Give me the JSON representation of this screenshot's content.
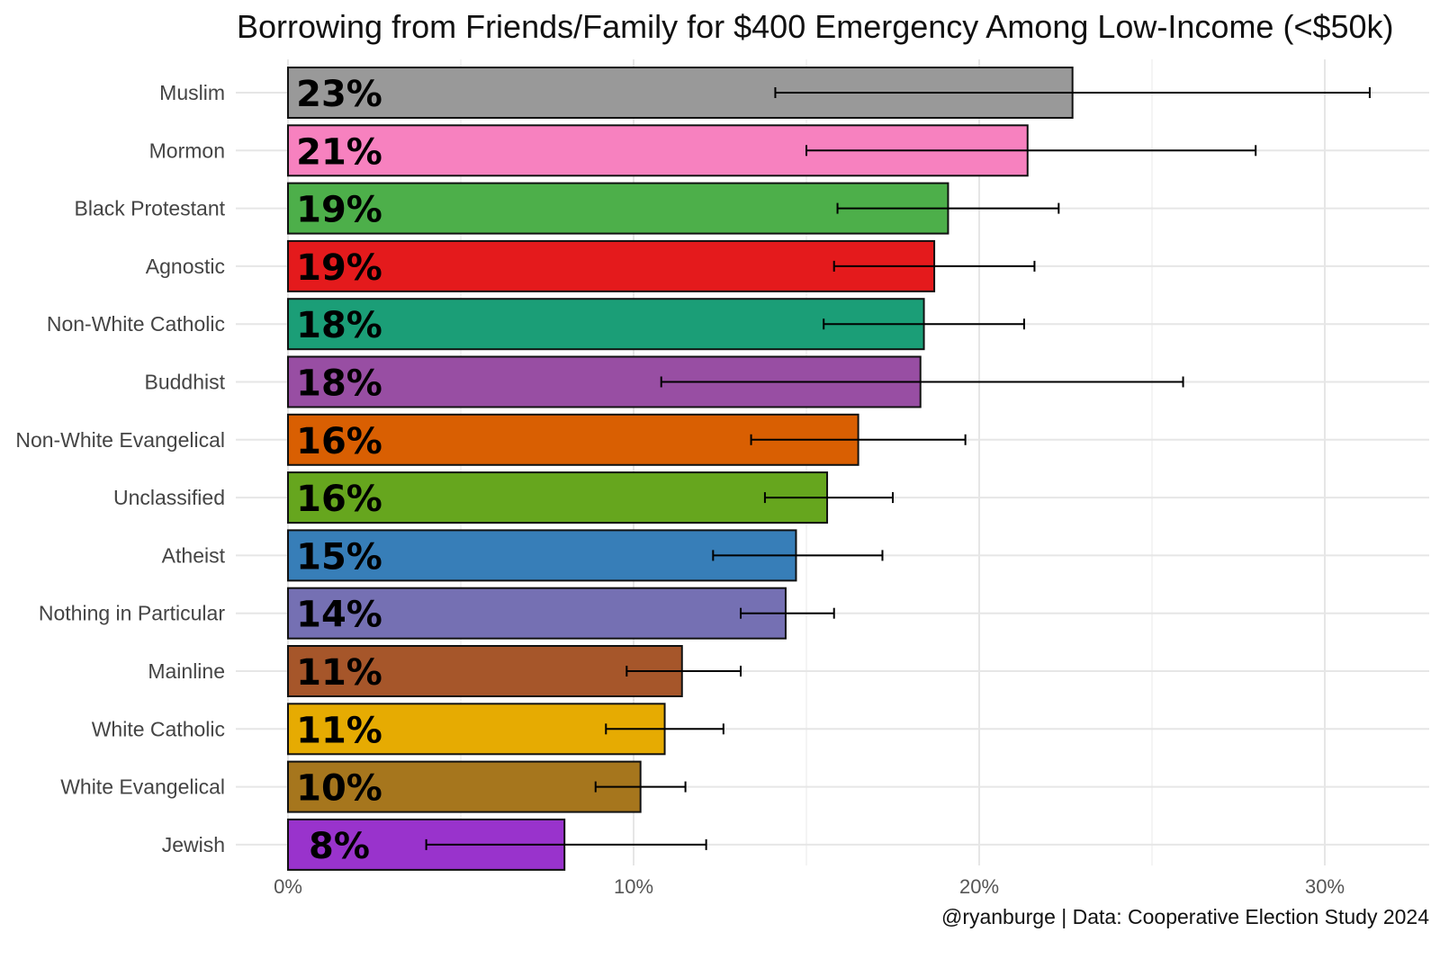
{
  "chart_data": {
    "type": "bar",
    "orientation": "horizontal",
    "title": "Borrowing from Friends/Family for $400 Emergency Among Low-Income (<$50k)",
    "caption": "@ryanburge | Data: Cooperative Election Study 2024",
    "xlabel": "",
    "ylabel": "",
    "xlim": [
      0,
      32
    ],
    "x_ticks": [
      0,
      10,
      20,
      30
    ],
    "x_tick_labels": [
      "0%",
      "10%",
      "20%",
      "30%"
    ],
    "grid": true,
    "categories": [
      "Muslim",
      "Mormon",
      "Black Protestant",
      "Agnostic",
      "Non-White Catholic",
      "Buddhist",
      "Non-White Evangelical",
      "Unclassified",
      "Atheist",
      "Nothing in Particular",
      "Mainline",
      "White Catholic",
      "White Evangelical",
      "Jewish"
    ],
    "values": [
      22.7,
      21.4,
      19.1,
      18.7,
      18.4,
      18.3,
      16.5,
      15.6,
      14.7,
      14.4,
      11.4,
      10.9,
      10.2,
      8.0
    ],
    "labels": [
      "23%",
      "21%",
      "19%",
      "19%",
      "18%",
      "18%",
      "16%",
      "16%",
      "15%",
      "14%",
      "11%",
      "11%",
      "10%",
      "8%"
    ],
    "ci_low": [
      14.1,
      15.0,
      15.9,
      15.8,
      15.5,
      10.8,
      13.4,
      13.8,
      12.3,
      13.1,
      9.8,
      9.2,
      8.9,
      4.0
    ],
    "ci_high": [
      31.3,
      28.0,
      22.3,
      21.6,
      21.3,
      25.9,
      19.6,
      17.5,
      17.2,
      15.8,
      13.1,
      12.6,
      11.5,
      12.1
    ],
    "colors": [
      "#999999",
      "#F781BF",
      "#4DAF4A",
      "#E41A1C",
      "#1B9E77",
      "#984EA3",
      "#D95F02",
      "#66A61E",
      "#377EB8",
      "#7570B3",
      "#A6562A",
      "#E6AB02",
      "#A6761D",
      "#9933CC"
    ]
  }
}
